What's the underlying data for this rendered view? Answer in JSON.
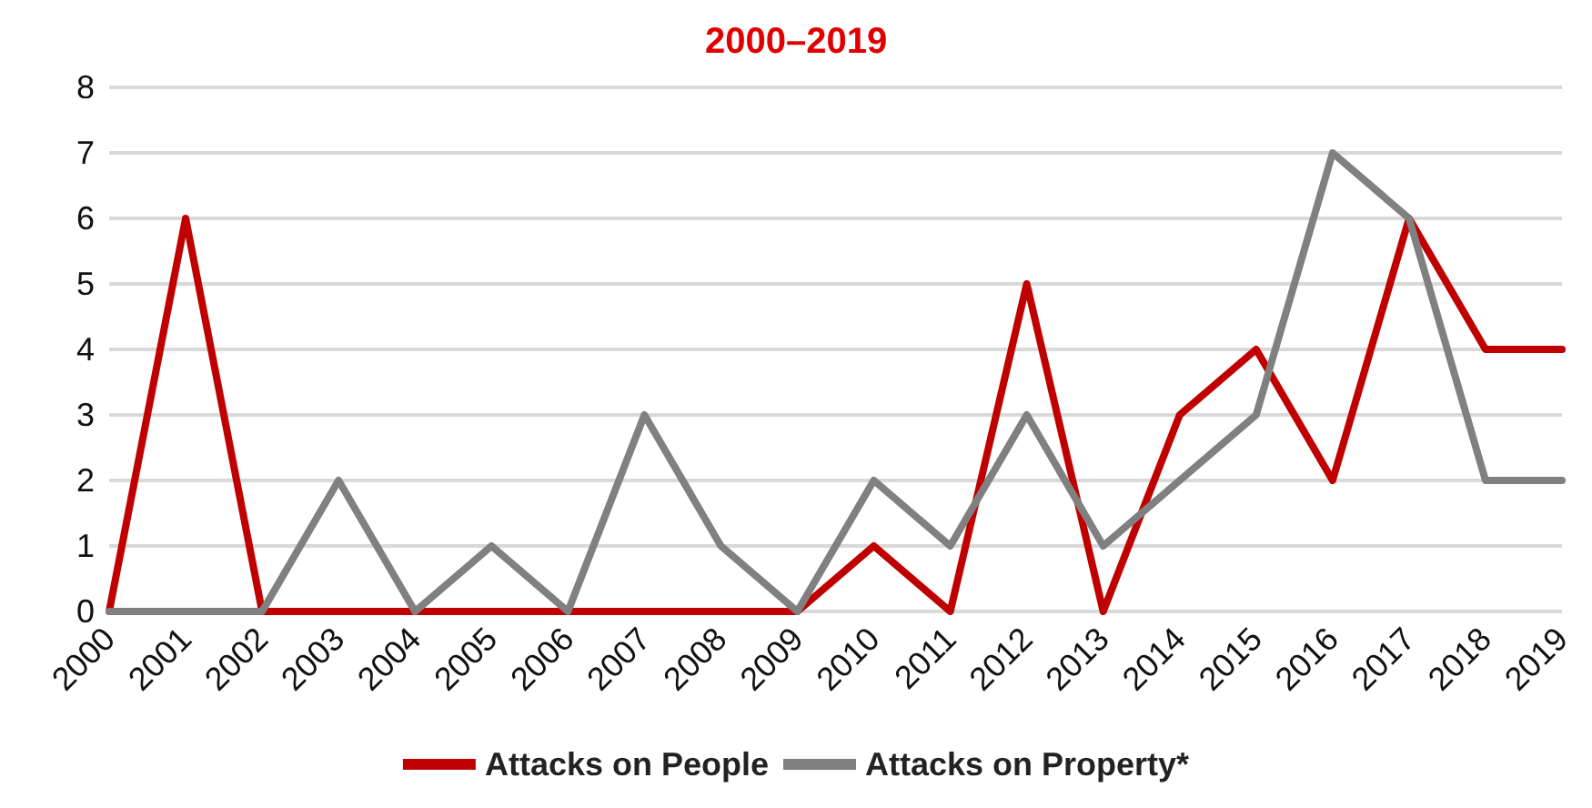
{
  "chart_data": {
    "type": "line",
    "title": "2000–2019",
    "categories": [
      "2000",
      "2001",
      "2002",
      "2003",
      "2004",
      "2005",
      "2006",
      "2007",
      "2008",
      "2009",
      "2010",
      "2011",
      "2012",
      "2013",
      "2014",
      "2015",
      "2016",
      "2017",
      "2018",
      "2019"
    ],
    "series": [
      {
        "name": "Attacks on People",
        "color": "#c00000",
        "values": [
          0,
          6,
          0,
          0,
          0,
          0,
          0,
          0,
          0,
          0,
          1,
          0,
          5,
          0,
          3,
          4,
          2,
          6,
          4,
          4
        ]
      },
      {
        "name": "Attacks on Property*",
        "color": "#808080",
        "values": [
          0,
          0,
          0,
          2,
          0,
          1,
          0,
          3,
          1,
          0,
          2,
          1,
          3,
          1,
          2,
          3,
          7,
          6,
          2,
          2
        ]
      }
    ],
    "ylim": [
      0,
      8
    ],
    "yticks": [
      0,
      1,
      2,
      3,
      4,
      5,
      6,
      7,
      8
    ],
    "grid": "y",
    "legend": "bottom",
    "marker": "none",
    "line_style": "solid"
  }
}
